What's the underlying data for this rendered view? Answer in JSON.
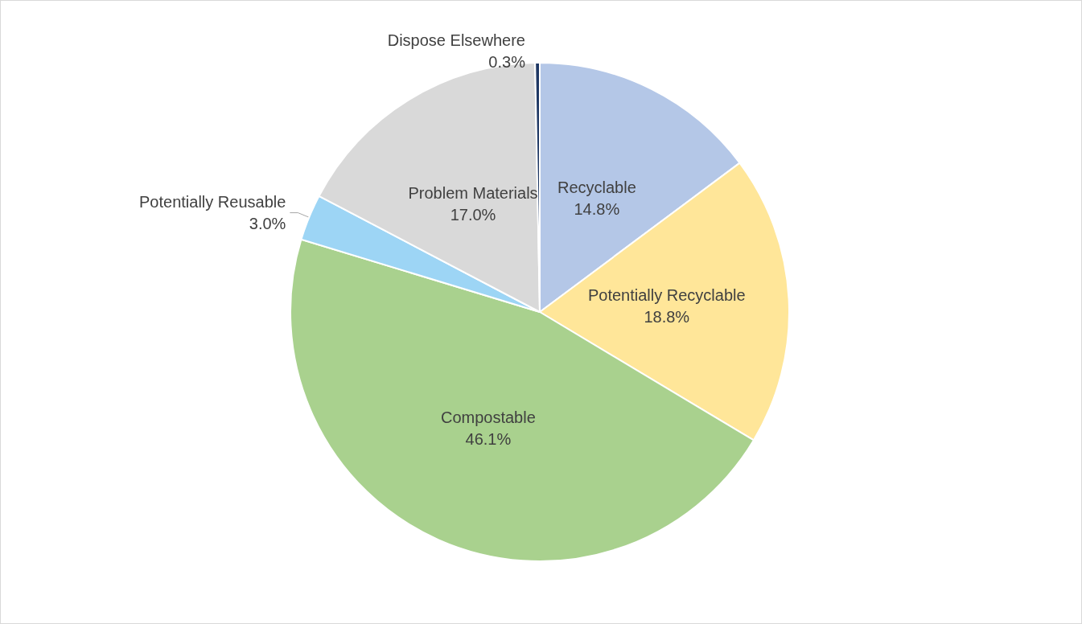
{
  "chart_data": {
    "type": "pie",
    "categories": [
      "Recyclable",
      "Potentially Recyclable",
      "Compostable",
      "Potentially Reusable",
      "Problem Materials",
      "Dispose Elsewhere"
    ],
    "values": [
      14.8,
      18.8,
      46.1,
      3.0,
      17.0,
      0.3
    ],
    "colors": [
      "#b4c7e7",
      "#ffe699",
      "#a9d18e",
      "#9dd5f5",
      "#d9d9d9",
      "#1f3864"
    ],
    "value_labels": [
      "14.8%",
      "18.8%",
      "46.1%",
      "3.0%",
      "17.0%",
      "0.3%"
    ],
    "legend": false
  }
}
